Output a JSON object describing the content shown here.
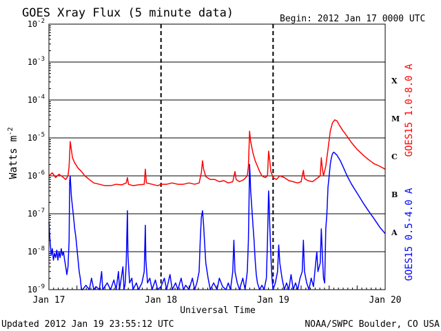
{
  "chart_data": {
    "type": "line",
    "title": "GOES Xray Flux (5 minute data)",
    "begin_text": "Begin:  2012 Jan 17 0000 UTC",
    "ylabel": "Watts m",
    "ylabel_sup": "-2",
    "xlabel": "Universal Time",
    "y_scale": "log",
    "ylim": [
      1e-09,
      0.01
    ],
    "y_ticks": [
      {
        "mant": "10",
        "exp": "-2",
        "value": 0.01
      },
      {
        "mant": "10",
        "exp": "-3",
        "value": 0.001
      },
      {
        "mant": "10",
        "exp": "-4",
        "value": 0.0001
      },
      {
        "mant": "10",
        "exp": "-5",
        "value": 1e-05
      },
      {
        "mant": "10",
        "exp": "-6",
        "value": 1e-06
      },
      {
        "mant": "10",
        "exp": "-7",
        "value": 1e-07
      },
      {
        "mant": "10",
        "exp": "-8",
        "value": 1e-08
      },
      {
        "mant": "10",
        "exp": "-9",
        "value": 1e-09
      }
    ],
    "x_unit": "day",
    "xlim": [
      0,
      3
    ],
    "x_ticks": [
      {
        "label": "Jan 17",
        "value": 0
      },
      {
        "label": "Jan 18",
        "value": 1
      },
      {
        "label": "Jan 19",
        "value": 2
      },
      {
        "label": "Jan 20",
        "value": 3
      }
    ],
    "flare_classes": [
      {
        "label": "X",
        "value": 0.00032
      },
      {
        "label": "M",
        "value": 3.2e-05
      },
      {
        "label": "C",
        "value": 3.2e-06
      },
      {
        "label": "B",
        "value": 3.2e-07
      },
      {
        "label": "A",
        "value": 3.2e-08
      }
    ],
    "grid": true,
    "series": [
      {
        "name": "GOES15 1.0-8.0 A",
        "color": "#ff0000",
        "points": [
          [
            0.0,
            1e-06
          ],
          [
            0.03,
            1.2e-06
          ],
          [
            0.06,
            9e-07
          ],
          [
            0.09,
            1.1e-06
          ],
          [
            0.12,
            9.5e-07
          ],
          [
            0.15,
            8e-07
          ],
          [
            0.17,
            1e-06
          ],
          [
            0.18,
            1.8e-06
          ],
          [
            0.19,
            8e-06
          ],
          [
            0.2,
            5e-06
          ],
          [
            0.21,
            3e-06
          ],
          [
            0.23,
            2.2e-06
          ],
          [
            0.26,
            1.6e-06
          ],
          [
            0.29,
            1.3e-06
          ],
          [
            0.32,
            1e-06
          ],
          [
            0.36,
            8e-07
          ],
          [
            0.4,
            6.5e-07
          ],
          [
            0.45,
            6e-07
          ],
          [
            0.5,
            5.5e-07
          ],
          [
            0.55,
            5.5e-07
          ],
          [
            0.6,
            6e-07
          ],
          [
            0.65,
            5.8e-07
          ],
          [
            0.69,
            6.5e-07
          ],
          [
            0.7,
            9e-07
          ],
          [
            0.71,
            6e-07
          ],
          [
            0.75,
            5.5e-07
          ],
          [
            0.8,
            5.8e-07
          ],
          [
            0.85,
            6e-07
          ],
          [
            0.86,
            1.5e-06
          ],
          [
            0.87,
            6.5e-07
          ],
          [
            0.92,
            6e-07
          ],
          [
            0.97,
            5.5e-07
          ],
          [
            1.0,
            6e-07
          ],
          [
            1.05,
            6e-07
          ],
          [
            1.1,
            6.5e-07
          ],
          [
            1.15,
            6e-07
          ],
          [
            1.2,
            6e-07
          ],
          [
            1.25,
            6.5e-07
          ],
          [
            1.3,
            6e-07
          ],
          [
            1.34,
            6.5e-07
          ],
          [
            1.36,
            1.2e-06
          ],
          [
            1.37,
            2.5e-06
          ],
          [
            1.38,
            1.5e-06
          ],
          [
            1.4,
            9.5e-07
          ],
          [
            1.44,
            8e-07
          ],
          [
            1.48,
            8e-07
          ],
          [
            1.52,
            7e-07
          ],
          [
            1.56,
            7.5e-07
          ],
          [
            1.6,
            6.5e-07
          ],
          [
            1.64,
            7e-07
          ],
          [
            1.66,
            1.3e-06
          ],
          [
            1.67,
            8e-07
          ],
          [
            1.7,
            7e-07
          ],
          [
            1.74,
            8e-07
          ],
          [
            1.77,
            1e-06
          ],
          [
            1.78,
            1.8e-06
          ],
          [
            1.79,
            1.5e-05
          ],
          [
            1.8,
            8e-06
          ],
          [
            1.82,
            4e-06
          ],
          [
            1.84,
            2.5e-06
          ],
          [
            1.86,
            1.8e-06
          ],
          [
            1.88,
            1.3e-06
          ],
          [
            1.9,
            1e-06
          ],
          [
            1.93,
            9e-07
          ],
          [
            1.95,
            1e-06
          ],
          [
            1.96,
            4.5e-06
          ],
          [
            1.97,
            2.5e-06
          ],
          [
            1.98,
            1.3e-06
          ],
          [
            2.0,
            9e-07
          ],
          [
            2.03,
            8e-07
          ],
          [
            2.06,
            1e-06
          ],
          [
            2.1,
            9e-07
          ],
          [
            2.14,
            7.5e-07
          ],
          [
            2.18,
            7e-07
          ],
          [
            2.22,
            6.5e-07
          ],
          [
            2.25,
            7e-07
          ],
          [
            2.27,
            1.4e-06
          ],
          [
            2.28,
            8.5e-07
          ],
          [
            2.31,
            7.5e-07
          ],
          [
            2.35,
            7e-07
          ],
          [
            2.39,
            8.5e-07
          ],
          [
            2.42,
            1e-06
          ],
          [
            2.43,
            3e-06
          ],
          [
            2.44,
            1.5e-06
          ],
          [
            2.45,
            1e-06
          ],
          [
            2.47,
            1.8e-06
          ],
          [
            2.49,
            5e-06
          ],
          [
            2.51,
            1.5e-05
          ],
          [
            2.53,
            2.5e-05
          ],
          [
            2.55,
            3e-05
          ],
          [
            2.57,
            2.8e-05
          ],
          [
            2.59,
            2.2e-05
          ],
          [
            2.62,
            1.6e-05
          ],
          [
            2.66,
            1.1e-05
          ],
          [
            2.7,
            7.5e-06
          ],
          [
            2.75,
            5e-06
          ],
          [
            2.8,
            3.6e-06
          ],
          [
            2.85,
            2.7e-06
          ],
          [
            2.9,
            2.1e-06
          ],
          [
            2.95,
            1.8e-06
          ],
          [
            3.0,
            1.5e-06
          ]
        ]
      },
      {
        "name": "GOES15 0.5-4.0 A",
        "color": "#0000ff",
        "points": [
          [
            0.0,
            6e-08
          ],
          [
            0.01,
            2e-08
          ],
          [
            0.02,
            8e-09
          ],
          [
            0.03,
            1.2e-08
          ],
          [
            0.04,
            6e-09
          ],
          [
            0.05,
            9e-09
          ],
          [
            0.06,
            7e-09
          ],
          [
            0.07,
            1.1e-08
          ],
          [
            0.08,
            6e-09
          ],
          [
            0.09,
            1e-08
          ],
          [
            0.1,
            7e-09
          ],
          [
            0.11,
            1.2e-08
          ],
          [
            0.12,
            8e-09
          ],
          [
            0.13,
            1e-08
          ],
          [
            0.14,
            6e-09
          ],
          [
            0.15,
            4e-09
          ],
          [
            0.16,
            2.5e-09
          ],
          [
            0.17,
            4e-09
          ],
          [
            0.18,
            2e-08
          ],
          [
            0.185,
            7e-07
          ],
          [
            0.19,
            1e-06
          ],
          [
            0.2,
            3e-07
          ],
          [
            0.21,
            1.5e-07
          ],
          [
            0.22,
            8e-08
          ],
          [
            0.23,
            4e-08
          ],
          [
            0.24,
            2.5e-08
          ],
          [
            0.25,
            1.2e-08
          ],
          [
            0.26,
            6e-09
          ],
          [
            0.27,
            3e-09
          ],
          [
            0.28,
            2e-09
          ],
          [
            0.29,
            1e-09
          ],
          [
            0.3,
            1e-09
          ],
          [
            0.33,
            1.3e-09
          ],
          [
            0.36,
            1e-09
          ],
          [
            0.38,
            2e-09
          ],
          [
            0.4,
            1e-09
          ],
          [
            0.42,
            1.2e-09
          ],
          [
            0.45,
            1e-09
          ],
          [
            0.47,
            3e-09
          ],
          [
            0.48,
            1e-09
          ],
          [
            0.52,
            1.5e-09
          ],
          [
            0.55,
            1e-09
          ],
          [
            0.58,
            1.8e-09
          ],
          [
            0.6,
            1e-09
          ],
          [
            0.62,
            3e-09
          ],
          [
            0.63,
            1e-09
          ],
          [
            0.66,
            4e-09
          ],
          [
            0.67,
            1e-09
          ],
          [
            0.68,
            1.4e-09
          ],
          [
            0.69,
            5e-09
          ],
          [
            0.7,
            1.2e-07
          ],
          [
            0.705,
            8e-09
          ],
          [
            0.72,
            1.5e-09
          ],
          [
            0.74,
            2e-09
          ],
          [
            0.75,
            1e-09
          ],
          [
            0.78,
            1.5e-09
          ],
          [
            0.8,
            1e-09
          ],
          [
            0.83,
            1.5e-09
          ],
          [
            0.85,
            3e-09
          ],
          [
            0.86,
            5e-08
          ],
          [
            0.865,
            6e-09
          ],
          [
            0.88,
            1.5e-09
          ],
          [
            0.9,
            2e-09
          ],
          [
            0.92,
            1e-09
          ],
          [
            0.95,
            1.8e-09
          ],
          [
            0.97,
            1e-09
          ],
          [
            1.0,
            1.2e-09
          ],
          [
            1.03,
            2e-09
          ],
          [
            1.05,
            1e-09
          ],
          [
            1.08,
            2.5e-09
          ],
          [
            1.1,
            1e-09
          ],
          [
            1.13,
            1.5e-09
          ],
          [
            1.15,
            1e-09
          ],
          [
            1.18,
            2e-09
          ],
          [
            1.2,
            1e-09
          ],
          [
            1.22,
            1.3e-09
          ],
          [
            1.25,
            1e-09
          ],
          [
            1.28,
            2e-09
          ],
          [
            1.3,
            1e-09
          ],
          [
            1.32,
            1.5e-09
          ],
          [
            1.34,
            3e-09
          ],
          [
            1.35,
            2e-08
          ],
          [
            1.36,
            8e-08
          ],
          [
            1.37,
            1.2e-07
          ],
          [
            1.38,
            5e-08
          ],
          [
            1.39,
            1.5e-08
          ],
          [
            1.4,
            5e-09
          ],
          [
            1.42,
            2e-09
          ],
          [
            1.44,
            1e-09
          ],
          [
            1.47,
            1.5e-09
          ],
          [
            1.5,
            1e-09
          ],
          [
            1.52,
            2e-09
          ],
          [
            1.55,
            1.2e-09
          ],
          [
            1.58,
            1e-09
          ],
          [
            1.6,
            1.5e-09
          ],
          [
            1.62,
            1e-09
          ],
          [
            1.64,
            3e-09
          ],
          [
            1.65,
            2e-08
          ],
          [
            1.66,
            3e-09
          ],
          [
            1.68,
            1.5e-09
          ],
          [
            1.7,
            1e-09
          ],
          [
            1.73,
            2e-09
          ],
          [
            1.75,
            1e-09
          ],
          [
            1.77,
            3e-09
          ],
          [
            1.78,
            2e-08
          ],
          [
            1.785,
            2e-07
          ],
          [
            1.79,
            2e-06
          ],
          [
            1.795,
            1e-06
          ],
          [
            1.8,
            4e-07
          ],
          [
            1.81,
            1.5e-07
          ],
          [
            1.82,
            5e-08
          ],
          [
            1.83,
            2e-08
          ],
          [
            1.84,
            6e-09
          ],
          [
            1.85,
            2.5e-09
          ],
          [
            1.86,
            1.5e-09
          ],
          [
            1.88,
            1e-09
          ],
          [
            1.9,
            1.3e-09
          ],
          [
            1.92,
            1e-09
          ],
          [
            1.94,
            2e-09
          ],
          [
            1.95,
            2e-08
          ],
          [
            1.96,
            4e-07
          ],
          [
            1.965,
            2e-07
          ],
          [
            1.97,
            5e-08
          ],
          [
            1.98,
            8e-09
          ],
          [
            1.99,
            2e-09
          ],
          [
            2.0,
            1e-09
          ],
          [
            2.02,
            1.5e-09
          ],
          [
            2.04,
            3e-09
          ],
          [
            2.05,
            1.5e-08
          ],
          [
            2.06,
            5e-09
          ],
          [
            2.08,
            2e-09
          ],
          [
            2.1,
            1e-09
          ],
          [
            2.12,
            1.5e-09
          ],
          [
            2.14,
            1e-09
          ],
          [
            2.16,
            2.5e-09
          ],
          [
            2.18,
            1e-09
          ],
          [
            2.2,
            1.5e-09
          ],
          [
            2.22,
            1e-09
          ],
          [
            2.24,
            2e-09
          ],
          [
            2.26,
            3e-09
          ],
          [
            2.27,
            2e-08
          ],
          [
            2.28,
            3e-09
          ],
          [
            2.3,
            1.5e-09
          ],
          [
            2.32,
            1e-09
          ],
          [
            2.34,
            2e-09
          ],
          [
            2.36,
            1.2e-09
          ],
          [
            2.38,
            5e-09
          ],
          [
            2.39,
            1e-08
          ],
          [
            2.4,
            3e-09
          ],
          [
            2.42,
            5e-09
          ],
          [
            2.43,
            4e-08
          ],
          [
            2.44,
            8e-09
          ],
          [
            2.45,
            2e-09
          ],
          [
            2.46,
            1.5e-09
          ],
          [
            2.47,
            4e-08
          ],
          [
            2.48,
            1e-07
          ],
          [
            2.49,
            5e-07
          ],
          [
            2.5,
            1e-06
          ],
          [
            2.51,
            2e-06
          ],
          [
            2.52,
            3e-06
          ],
          [
            2.53,
            3.8e-06
          ],
          [
            2.54,
            4.2e-06
          ],
          [
            2.55,
            4e-06
          ],
          [
            2.57,
            3.5e-06
          ],
          [
            2.6,
            2.5e-06
          ],
          [
            2.63,
            1.6e-06
          ],
          [
            2.66,
            1e-06
          ],
          [
            2.7,
            6e-07
          ],
          [
            2.75,
            3.5e-07
          ],
          [
            2.8,
            2e-07
          ],
          [
            2.85,
            1.2e-07
          ],
          [
            2.9,
            7.5e-08
          ],
          [
            2.95,
            4.5e-08
          ],
          [
            3.0,
            3e-08
          ]
        ]
      }
    ]
  },
  "footer": {
    "updated": "Updated 2012 Jan 19 23:55:12 UTC",
    "credit": "NOAA/SWPC Boulder, CO USA"
  }
}
